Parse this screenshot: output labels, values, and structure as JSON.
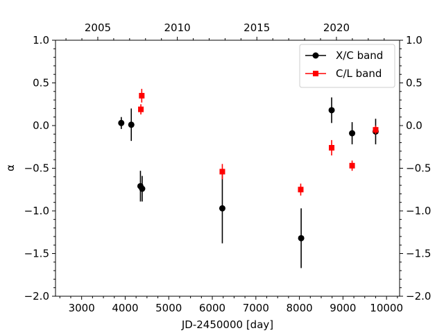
{
  "chart_data": {
    "type": "scatter",
    "title": "",
    "xlabel": "JD-2450000 [day]",
    "ylabel": "α",
    "xlim": [
      2400,
      10300
    ],
    "ylim": [
      -2.0,
      1.0
    ],
    "x_ticks": [
      3000,
      4000,
      5000,
      6000,
      7000,
      8000,
      9000,
      10000
    ],
    "x_tick_labels": [
      "3000",
      "4000",
      "5000",
      "6000",
      "7000",
      "8000",
      "9000",
      "10000"
    ],
    "y_ticks": [
      -2.0,
      -1.5,
      -1.0,
      -0.5,
      0.0,
      0.5,
      1.0
    ],
    "y_tick_labels": [
      "−2.0",
      "−1.5",
      "−1.0",
      "−0.5",
      "0.0",
      "0.5",
      "1.0"
    ],
    "top_axis": {
      "label": "",
      "ticks_jd": [
        3371,
        5197,
        7023,
        8850
      ],
      "tick_labels": [
        "2005",
        "2010",
        "2015",
        "2020"
      ]
    },
    "grid": false,
    "legend_position": "upper right",
    "series": [
      {
        "name": "X/C band",
        "color": "#000000",
        "marker": "circle",
        "points": [
          {
            "x": 3910,
            "y": 0.03,
            "err": 0.07
          },
          {
            "x": 4140,
            "y": 0.01,
            "err": 0.19
          },
          {
            "x": 4350,
            "y": -0.71,
            "err": 0.18
          },
          {
            "x": 4390,
            "y": -0.74,
            "err": 0.15
          },
          {
            "x": 6230,
            "y": -0.97,
            "err": 0.41
          },
          {
            "x": 8040,
            "y": -1.32,
            "err": 0.35
          },
          {
            "x": 8740,
            "y": 0.18,
            "err": 0.15
          },
          {
            "x": 9210,
            "y": -0.09,
            "err": 0.13
          },
          {
            "x": 9750,
            "y": -0.07,
            "err": 0.15
          }
        ]
      },
      {
        "name": "C/L band",
        "color": "#ff0000",
        "marker": "square",
        "points": [
          {
            "x": 4360,
            "y": 0.19,
            "err": 0.06
          },
          {
            "x": 4380,
            "y": 0.35,
            "err": 0.08
          },
          {
            "x": 6230,
            "y": -0.54,
            "err": 0.09
          },
          {
            "x": 8030,
            "y": -0.75,
            "err": 0.07
          },
          {
            "x": 8740,
            "y": -0.26,
            "err": 0.09
          },
          {
            "x": 9210,
            "y": -0.47,
            "err": 0.06
          },
          {
            "x": 9750,
            "y": -0.05,
            "err": 0.05
          }
        ]
      }
    ]
  }
}
